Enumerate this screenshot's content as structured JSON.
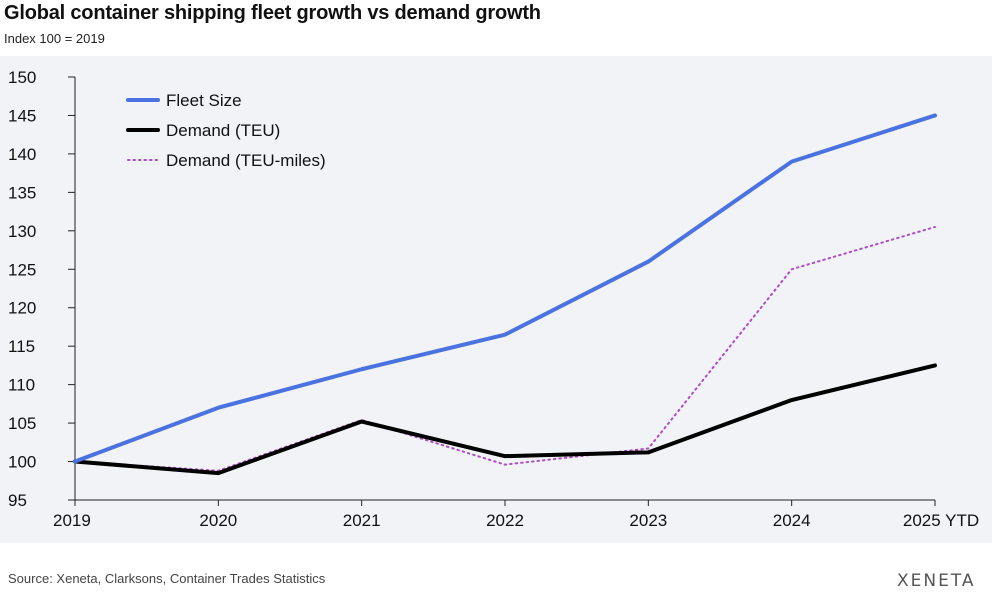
{
  "title": "Global container shipping fleet growth vs demand growth",
  "subtitle": "Index 100 = 2019",
  "source": "Source: Xeneta, Clarksons, Container Trades Statistics",
  "logo": "XENETA",
  "chart_data": {
    "type": "line",
    "title": "Global container shipping fleet growth vs demand growth",
    "subtitle": "Index 100 = 2019",
    "xlabel": "",
    "ylabel": "",
    "categories": [
      "2019",
      "2020",
      "2021",
      "2022",
      "2023",
      "2024",
      "2025 YTD"
    ],
    "ylim": [
      95,
      150
    ],
    "yticks": [
      95,
      100,
      105,
      110,
      115,
      120,
      125,
      130,
      135,
      140,
      145,
      150
    ],
    "grid": false,
    "legend_position": "top-left",
    "series": [
      {
        "name": "Fleet Size",
        "color": "#4a72e0",
        "style": "solid",
        "values": [
          100,
          107,
          112,
          116.5,
          126,
          139,
          145
        ]
      },
      {
        "name": "Demand (TEU)",
        "color": "#000000",
        "style": "solid",
        "values": [
          100,
          98.5,
          105.2,
          100.7,
          101.2,
          108,
          112.5
        ]
      },
      {
        "name": "Demand (TEU-miles)",
        "color": "#b04bc8",
        "style": "dotted",
        "values": [
          100,
          98.8,
          105.4,
          99.6,
          101.7,
          125,
          130.5
        ]
      }
    ]
  }
}
